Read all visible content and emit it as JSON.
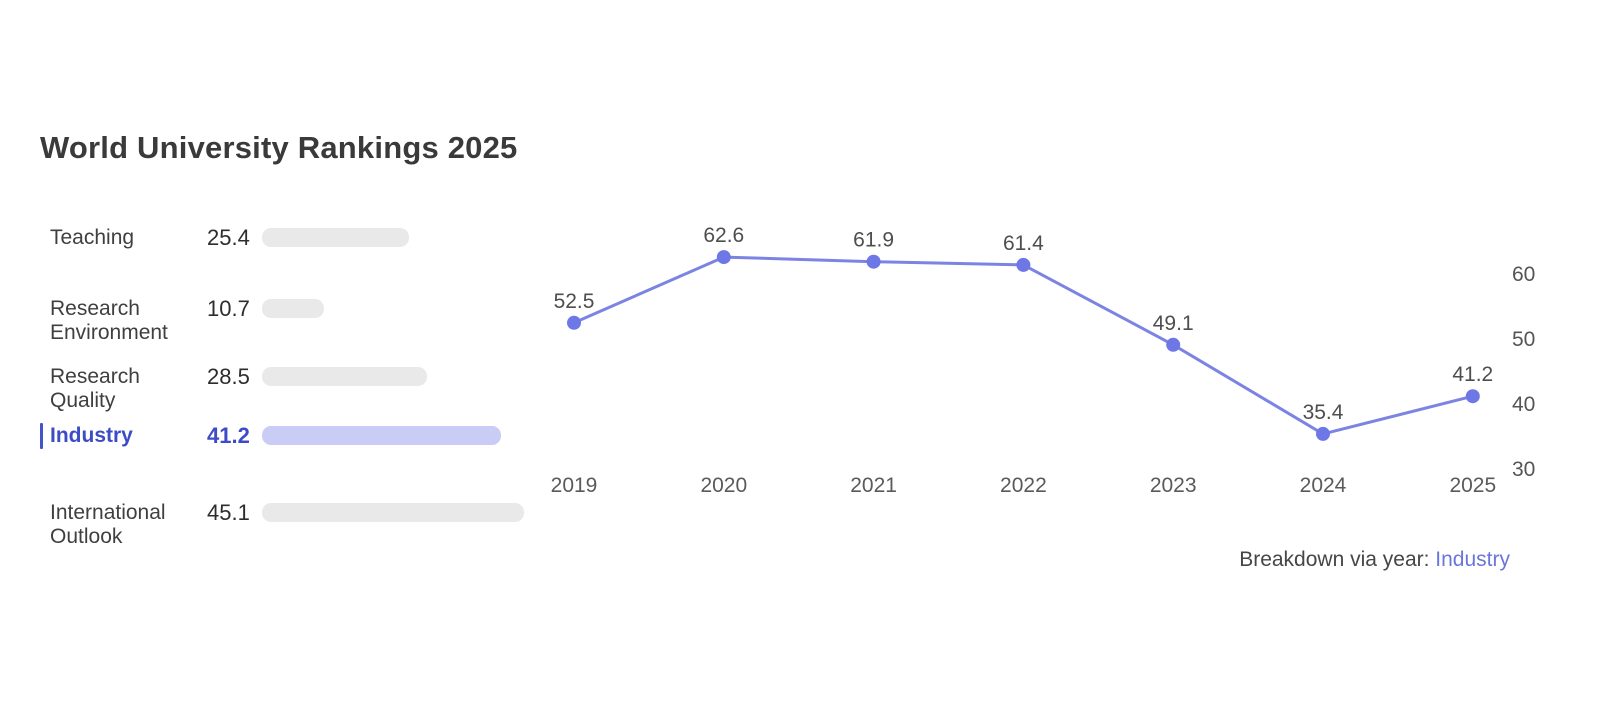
{
  "page": {
    "title": "World University Rankings 2025"
  },
  "metrics": {
    "items": [
      {
        "label": "Teaching",
        "value": 25.4,
        "active": false
      },
      {
        "label": "Research Environment",
        "value": 10.7,
        "active": false
      },
      {
        "label": "Research Quality",
        "value": 28.5,
        "active": false
      },
      {
        "label": "Industry",
        "value": 41.2,
        "active": true
      },
      {
        "label": "International Outlook",
        "value": 45.1,
        "active": false
      }
    ]
  },
  "chart_data": {
    "type": "line",
    "x": [
      "2019",
      "2020",
      "2021",
      "2022",
      "2023",
      "2024",
      "2025"
    ],
    "series": [
      {
        "name": "Industry",
        "values": [
          52.5,
          62.6,
          61.9,
          61.4,
          49.1,
          35.4,
          41.2
        ]
      }
    ],
    "yticks": [
      60,
      50,
      40,
      30
    ],
    "ylim": [
      28,
      67
    ],
    "yaxis_position": "right",
    "grid": false,
    "data_labels": true,
    "legend": "none",
    "title": "",
    "xlabel": "",
    "ylabel": ""
  },
  "footer": {
    "prefix": "Breakdown via year:",
    "highlight": "Industry"
  },
  "colors": {
    "accent": "#3d4cc6",
    "accent_tick": "#4353c9",
    "accent_bar": "#c9cdf5",
    "bar_gray": "#e9e9e9",
    "line": "#7b83e3",
    "dot": "#6d77e6",
    "title_text": "#3a3a3a",
    "axis_text": "#555555",
    "year_text": "#5a5a5a",
    "point_label_text": "#4e4e4e",
    "footer_link": "#6b76dd"
  }
}
